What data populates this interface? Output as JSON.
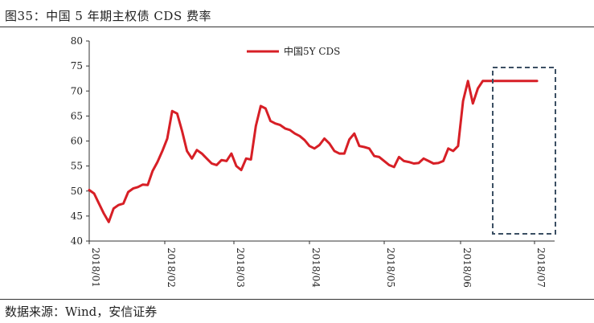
{
  "header": {
    "title": "图35：中国 5 年期主权债 CDS 费率"
  },
  "footer": {
    "source": "数据来源：Wind，安信证券"
  },
  "chart_data": {
    "type": "line",
    "title": "图35：中国 5 年期主权债 CDS 费率",
    "xlabel": "",
    "ylabel": "",
    "ylim": [
      40,
      80
    ],
    "yticks": [
      40,
      45,
      50,
      55,
      60,
      65,
      70,
      75,
      80
    ],
    "xticks": [
      "2018/01",
      "2018/02",
      "2018/03",
      "2018/04",
      "2018/05",
      "2018/06",
      "2018/07"
    ],
    "grid": false,
    "legend": {
      "position": "top-center",
      "entries": [
        "中国5Y CDS"
      ]
    },
    "series": [
      {
        "name": "中国5Y CDS",
        "color": "#d71f26",
        "x": [
          "2018-01-01",
          "2018-01-03",
          "2018-01-05",
          "2018-01-07",
          "2018-01-09",
          "2018-01-11",
          "2018-01-13",
          "2018-01-15",
          "2018-01-17",
          "2018-01-19",
          "2018-01-21",
          "2018-01-23",
          "2018-01-25",
          "2018-01-27",
          "2018-01-29",
          "2018-01-31",
          "2018-02-02",
          "2018-02-04",
          "2018-02-06",
          "2018-02-08",
          "2018-02-10",
          "2018-02-12",
          "2018-02-14",
          "2018-02-16",
          "2018-02-18",
          "2018-02-20",
          "2018-02-22",
          "2018-02-24",
          "2018-02-26",
          "2018-02-28",
          "2018-03-02",
          "2018-03-04",
          "2018-03-06",
          "2018-03-08",
          "2018-03-10",
          "2018-03-12",
          "2018-03-14",
          "2018-03-16",
          "2018-03-18",
          "2018-03-20",
          "2018-03-22",
          "2018-03-24",
          "2018-03-26",
          "2018-03-28",
          "2018-03-30",
          "2018-04-01",
          "2018-04-03",
          "2018-04-05",
          "2018-04-07",
          "2018-04-09",
          "2018-04-11",
          "2018-04-13",
          "2018-04-15",
          "2018-04-17",
          "2018-04-19",
          "2018-04-21",
          "2018-04-23",
          "2018-04-25",
          "2018-04-27",
          "2018-04-29",
          "2018-05-01",
          "2018-05-03",
          "2018-05-05",
          "2018-05-07",
          "2018-05-09",
          "2018-05-11",
          "2018-05-13",
          "2018-05-15",
          "2018-05-17",
          "2018-05-19",
          "2018-05-21",
          "2018-05-23",
          "2018-05-25",
          "2018-05-27",
          "2018-05-29",
          "2018-05-31",
          "2018-06-02",
          "2018-06-04",
          "2018-06-06",
          "2018-06-08",
          "2018-06-10",
          "2018-06-12",
          "2018-06-14",
          "2018-06-16",
          "2018-06-18",
          "2018-06-20",
          "2018-06-22",
          "2018-06-24",
          "2018-06-26",
          "2018-06-28",
          "2018-06-30",
          "2018-07-02",
          "2018-07-04"
        ],
        "values": [
          50.2,
          49.5,
          47.5,
          45.5,
          43.8,
          46.5,
          47.2,
          47.5,
          49.8,
          50.5,
          50.8,
          51.3,
          51.2,
          54.0,
          55.8,
          58.0,
          60.5,
          66.0,
          65.5,
          62.0,
          58.0,
          56.5,
          58.2,
          57.5,
          56.5,
          55.5,
          55.2,
          56.2,
          56.0,
          57.5,
          55.0,
          54.2,
          56.5,
          56.3,
          63.0,
          67.0,
          66.5,
          64.0,
          63.5,
          63.2,
          62.5,
          62.2,
          61.5,
          61.0,
          60.2,
          59.0,
          58.5,
          59.2,
          60.5,
          59.5,
          58.0,
          57.5,
          57.5,
          60.3,
          61.5,
          59.0,
          58.8,
          58.5,
          57.0,
          56.8,
          56.0,
          55.2,
          54.8,
          56.8,
          56.0,
          55.8,
          55.5,
          55.6,
          56.5,
          56.0,
          55.5,
          55.6,
          56.0,
          58.5,
          58.0,
          59.0,
          68.0,
          72.0,
          67.5,
          70.5,
          72.0,
          72.0,
          72.0,
          72.0,
          72.0,
          72.0,
          72.0,
          72.0,
          72.0,
          72.0,
          72.0,
          72.0,
          72.0
        ],
        "note_values_visible_until": "2018-07-02"
      }
    ]
  }
}
